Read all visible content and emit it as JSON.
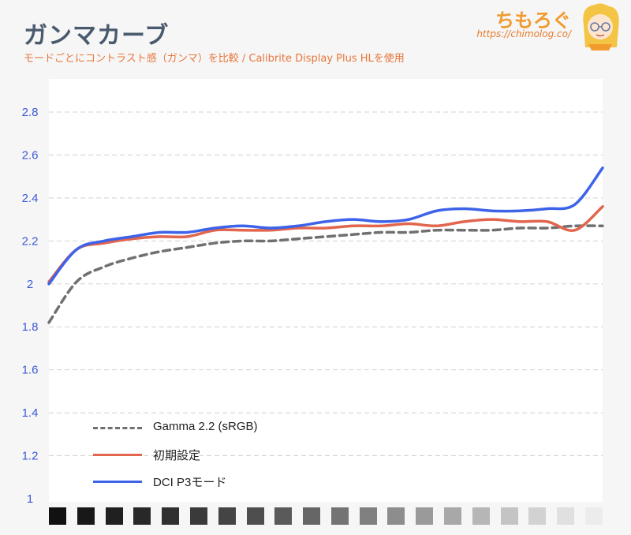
{
  "header": {
    "title": "ガンマカーブ",
    "subtitle": "モードごとにコントラスト感（ガンマ）を比較 / Calibrite Display Plus HLを使用"
  },
  "logo": {
    "name": "ちもろぐ",
    "url": "https://chimolog.co/",
    "accent_color": "#f29a2e"
  },
  "chart_data": {
    "type": "line",
    "title": "ガンマカーブ",
    "xlabel": "",
    "ylabel": "",
    "ylim": [
      1,
      2.9
    ],
    "yticks": [
      "1",
      "1.2",
      "1.4",
      "1.6",
      "1.8",
      "2",
      "2.2",
      "2.4",
      "2.6",
      "2.8"
    ],
    "x": [
      1,
      2,
      3,
      4,
      5,
      6,
      7,
      8,
      9,
      10,
      11,
      12,
      13,
      14,
      15,
      16,
      17,
      18,
      19,
      20,
      21
    ],
    "grid": true,
    "legend_position": "bottom-left",
    "series": [
      {
        "name": "Gamma 2.2 (sRGB)",
        "color": "#707070",
        "style": "dashed",
        "values": [
          1.82,
          2.01,
          2.08,
          2.12,
          2.15,
          2.17,
          2.19,
          2.2,
          2.2,
          2.21,
          2.22,
          2.23,
          2.24,
          2.24,
          2.25,
          2.25,
          2.25,
          2.26,
          2.26,
          2.27,
          2.27
        ]
      },
      {
        "name": "初期設定",
        "color": "#e2654e",
        "style": "solid",
        "values": [
          2.01,
          2.16,
          2.19,
          2.21,
          2.22,
          2.22,
          2.25,
          2.25,
          2.25,
          2.26,
          2.26,
          2.27,
          2.27,
          2.28,
          2.27,
          2.29,
          2.3,
          2.29,
          2.29,
          2.25,
          2.36
        ]
      },
      {
        "name": "DCI P3モード",
        "color": "#3d63e8",
        "style": "solid",
        "values": [
          2.0,
          2.16,
          2.2,
          2.22,
          2.24,
          2.24,
          2.26,
          2.27,
          2.26,
          2.27,
          2.29,
          2.3,
          2.29,
          2.3,
          2.34,
          2.35,
          2.34,
          2.34,
          2.35,
          2.37,
          2.54
        ]
      }
    ],
    "gray_swatches": [
      "#111111",
      "#181818",
      "#202020",
      "#282828",
      "#303030",
      "#3a3a3a",
      "#444444",
      "#4e4e4e",
      "#5a5a5a",
      "#666666",
      "#737373",
      "#808080",
      "#8d8d8d",
      "#9a9a9a",
      "#a8a8a8",
      "#b6b6b6",
      "#c4c4c4",
      "#d2d2d2",
      "#e0e0e0",
      "#ececec"
    ]
  }
}
